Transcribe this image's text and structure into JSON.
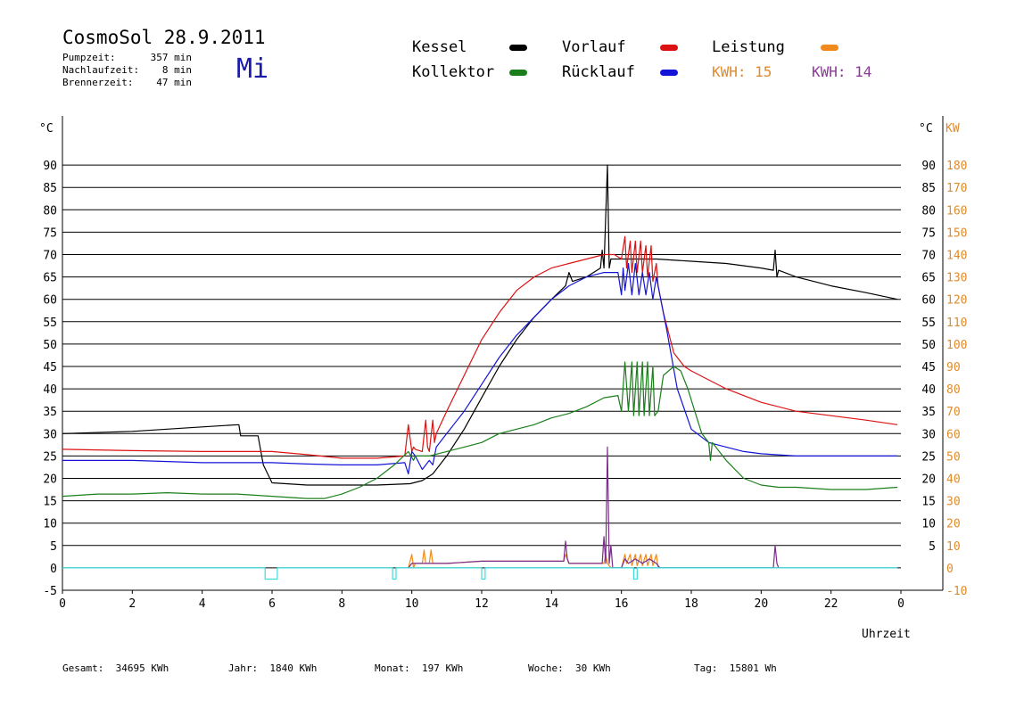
{
  "header": {
    "title": "CosmoSol 28.9.2011",
    "day": "Mi",
    "stats": [
      {
        "label": "Pumpzeit:",
        "value": "357 min"
      },
      {
        "label": "Nachlaufzeit:",
        "value": "8 min"
      },
      {
        "label": "Brennerzeit:",
        "value": "47 min"
      }
    ]
  },
  "legend": {
    "items": [
      {
        "label": "Kessel",
        "color": "#000000"
      },
      {
        "label": "Kollektor",
        "color": "#1a7f1a"
      },
      {
        "label": "Vorlauf",
        "color": "#dd1111"
      },
      {
        "label": "Rücklauf",
        "color": "#1414d8"
      },
      {
        "label": "Leistung",
        "color": "#f08a1c"
      }
    ],
    "kwh1": {
      "label": "KWH:",
      "value": "15",
      "color": "#e08b2c"
    },
    "kwh2": {
      "label": "KWH:",
      "value": "14",
      "color": "#8a3a96"
    }
  },
  "footer": {
    "items": [
      {
        "label": "Gesamt:",
        "value": "34695 KWh"
      },
      {
        "label": "Jahr:",
        "value": "1840 KWh"
      },
      {
        "label": "Monat:",
        "value": "197 KWh"
      },
      {
        "label": "Woche:",
        "value": "30 KWh"
      },
      {
        "label": "Tag:",
        "value": "15801 Wh"
      }
    ]
  },
  "chart_data": {
    "type": "line",
    "xlabel": "Uhrzeit",
    "xlim": [
      0,
      24
    ],
    "xticks": [
      "0",
      "2",
      "4",
      "6",
      "8",
      "10",
      "12",
      "14",
      "16",
      "18",
      "20",
      "22",
      "0"
    ],
    "ylabel_left": "°C",
    "ylabel_right_temp": "°C",
    "ylabel_right_power": "KW",
    "ylim": [
      -5,
      95
    ],
    "yticks_left": [
      "90",
      "85",
      "80",
      "75",
      "70",
      "65",
      "60",
      "55",
      "50",
      "45",
      "40",
      "35",
      "30",
      "25",
      "20",
      "15",
      "10",
      "5",
      "0",
      "-5"
    ],
    "yticks_right_temp": [
      "90",
      "85",
      "80",
      "75",
      "70",
      "65",
      "60",
      "55",
      "50",
      "45",
      "40",
      "35",
      "30",
      "25",
      "20",
      "15",
      "10",
      "5"
    ],
    "yticks_right_power": [
      "180",
      "170",
      "160",
      "150",
      "140",
      "130",
      "120",
      "110",
      "100",
      "90",
      "80",
      "70",
      "60",
      "50",
      "40",
      "30",
      "20",
      "10",
      "0",
      "-10"
    ],
    "grid": true,
    "series": [
      {
        "name": "Kessel",
        "color": "#000000",
        "x": [
          0,
          2,
          4,
          5.05,
          5.1,
          5.6,
          5.75,
          6.0,
          7.0,
          8.0,
          9.0,
          9.95,
          10.3,
          10.6,
          11.0,
          11.5,
          12.0,
          12.5,
          13.0,
          13.5,
          14.0,
          14.4,
          14.5,
          14.6,
          15.0,
          15.4,
          15.45,
          15.5,
          15.6,
          15.65,
          15.7,
          15.75,
          16.0,
          16.5,
          17.0,
          18.0,
          19.0,
          20.0,
          20.35,
          20.4,
          20.45,
          20.5,
          21.0,
          22.0,
          23.0,
          23.9
        ],
        "y": [
          30,
          30.5,
          31.5,
          32,
          29.5,
          29.5,
          23,
          19,
          18.5,
          18.5,
          18.5,
          18.8,
          19.5,
          21,
          25,
          31,
          38,
          45,
          51,
          56,
          60,
          63,
          66,
          64,
          65,
          67,
          71,
          67,
          90,
          67,
          69,
          69,
          69,
          69,
          69,
          68.5,
          68,
          67,
          66.5,
          71,
          65,
          66.5,
          65,
          63,
          61.5,
          60
        ]
      },
      {
        "name": "Vorlauf",
        "color": "#dd1111",
        "x": [
          0,
          2,
          4,
          6,
          7,
          8,
          9,
          9.8,
          9.9,
          10.0,
          10.05,
          10.1,
          10.3,
          10.4,
          10.45,
          10.5,
          10.6,
          10.65,
          10.7,
          11.0,
          11.5,
          12.0,
          12.5,
          13.0,
          13.5,
          14.0,
          14.5,
          15.0,
          15.5,
          15.8,
          16.0,
          16.1,
          16.15,
          16.25,
          16.3,
          16.4,
          16.45,
          16.55,
          16.6,
          16.7,
          16.75,
          16.85,
          16.9,
          17.0,
          17.05,
          17.2,
          17.5,
          17.8,
          18.0,
          18.5,
          19.0,
          20.0,
          21.0,
          22.0,
          23.0,
          23.9
        ],
        "y": [
          26.5,
          26.2,
          26.0,
          26.0,
          25.3,
          24.5,
          24.5,
          25,
          32,
          26,
          27,
          26.5,
          26,
          33,
          27,
          26,
          33,
          28,
          30,
          35,
          43,
          51,
          57,
          62,
          65,
          67,
          68,
          69,
          70,
          70,
          69,
          74,
          67,
          73,
          66,
          73,
          66,
          73,
          66,
          72,
          65,
          72,
          64,
          68,
          63,
          57,
          48,
          45,
          44,
          42,
          40,
          37,
          35,
          34,
          33,
          32
        ]
      },
      {
        "name": "Rücklauf",
        "color": "#1414d8",
        "x": [
          0,
          2,
          4,
          6,
          7,
          8,
          9,
          9.8,
          9.9,
          10.0,
          10.1,
          10.3,
          10.5,
          10.6,
          10.7,
          11.0,
          11.5,
          12.0,
          12.5,
          13.0,
          13.5,
          14.0,
          14.5,
          15.0,
          15.5,
          15.9,
          16.0,
          16.05,
          16.1,
          16.2,
          16.3,
          16.4,
          16.5,
          16.6,
          16.7,
          16.8,
          16.9,
          17.0,
          17.1,
          17.3,
          17.6,
          18.0,
          18.5,
          19.0,
          19.5,
          20.0,
          21.0,
          22.0,
          23.0,
          23.9
        ],
        "y": [
          24,
          24,
          23.5,
          23.5,
          23.2,
          23,
          23,
          23.5,
          21,
          26,
          25,
          22,
          24,
          23,
          27,
          30,
          35,
          41,
          47,
          52,
          56,
          60,
          63,
          65,
          66,
          66,
          61,
          67,
          62,
          68,
          61,
          68,
          61,
          66,
          61,
          66,
          60,
          65,
          61,
          53,
          40,
          31,
          28,
          27,
          26,
          25.5,
          25,
          25,
          25,
          25
        ]
      },
      {
        "name": "Kollektor",
        "color": "#1a7f1a",
        "x": [
          0,
          1,
          2,
          3,
          4,
          5,
          6,
          7,
          7.5,
          8,
          8.5,
          9,
          9.5,
          9.9,
          10.05,
          10.1,
          10.5,
          11.0,
          11.5,
          12.0,
          12.5,
          13.0,
          13.5,
          14.0,
          14.5,
          15.0,
          15.5,
          15.9,
          16.0,
          16.1,
          16.2,
          16.3,
          16.35,
          16.45,
          16.5,
          16.6,
          16.65,
          16.75,
          16.8,
          16.9,
          16.95,
          17.05,
          17.2,
          17.5,
          17.7,
          17.9,
          18.1,
          18.3,
          18.5,
          18.55,
          18.6,
          19.0,
          19.5,
          20.0,
          20.5,
          21.0,
          22.0,
          23.0,
          23.9
        ],
        "y": [
          16,
          16.5,
          16.5,
          16.8,
          16.5,
          16.5,
          16,
          15.5,
          15.5,
          16.5,
          18,
          20,
          23,
          26,
          24,
          25,
          25,
          26,
          27,
          28,
          30,
          31,
          32,
          33.5,
          34.5,
          36,
          38,
          38.5,
          35,
          46,
          35,
          46,
          34,
          46,
          34,
          46,
          34,
          46,
          34,
          45,
          34,
          35,
          43,
          45,
          44,
          40,
          35,
          30,
          28,
          24,
          28,
          24,
          20,
          18.5,
          18,
          18,
          17.5,
          17.5,
          18
        ]
      },
      {
        "name": "Leistung",
        "color": "#f08a1c",
        "x": [
          9.9,
          10.0,
          10.05,
          10.1,
          10.3,
          10.35,
          10.4,
          10.5,
          10.55,
          10.6,
          11.0,
          12.0,
          13.0,
          14.0,
          14.35,
          14.4,
          14.5,
          15.0,
          15.5,
          15.55,
          15.6,
          15.7,
          15.75,
          16.0,
          16.1,
          16.15,
          16.25,
          16.3,
          16.4,
          16.45,
          16.55,
          16.6,
          16.7,
          16.75,
          16.85,
          16.9,
          17.0,
          17.05,
          17.1
        ],
        "y": [
          0,
          3,
          0,
          1,
          1,
          4,
          1,
          1,
          4,
          1,
          1,
          1.5,
          1.5,
          1.5,
          1.5,
          3,
          1,
          1,
          1,
          3,
          1,
          0,
          0,
          0,
          3,
          1,
          3,
          0.5,
          3,
          0.5,
          3,
          0.5,
          3,
          0.5,
          3,
          0.5,
          3,
          0,
          0
        ]
      },
      {
        "name": "",
        "color": "#7b2c8a",
        "x": [
          9.9,
          10.0,
          10.3,
          10.5,
          11.0,
          12.0,
          13.0,
          14.0,
          14.35,
          14.4,
          14.45,
          14.5,
          15.0,
          15.45,
          15.5,
          15.55,
          15.6,
          15.65,
          15.7,
          15.75,
          16.0,
          16.1,
          16.2,
          16.4,
          16.6,
          16.8,
          17.0,
          17.1,
          20.35,
          20.4,
          20.45,
          20.5
        ],
        "y": [
          0,
          1,
          1,
          1,
          1,
          1.5,
          1.5,
          1.5,
          1.5,
          6,
          2,
          1,
          1,
          1,
          7,
          1,
          27,
          1,
          5,
          0,
          0,
          2,
          1,
          2,
          1,
          2,
          1,
          0,
          0,
          5,
          1,
          0
        ]
      },
      {
        "name": "",
        "color": "#3ddcdc",
        "x": [
          0,
          5.8,
          5.8,
          6.15,
          6.15,
          9.45,
          9.45,
          9.55,
          9.55,
          12.0,
          12.0,
          12.1,
          12.1,
          16.35,
          16.35,
          16.45,
          16.45,
          23.9
        ],
        "y": [
          0,
          0,
          -2.5,
          -2.5,
          0,
          0,
          -2.5,
          -2.5,
          0,
          0,
          -2.5,
          -2.5,
          0,
          0,
          -2.5,
          -2.5,
          0,
          0
        ]
      }
    ]
  }
}
